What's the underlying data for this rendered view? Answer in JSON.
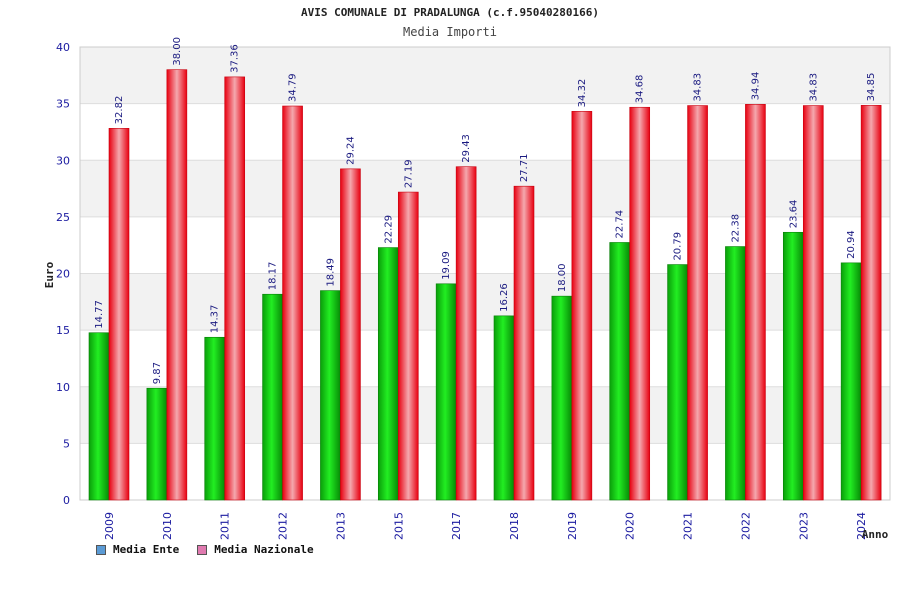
{
  "chart_data": {
    "type": "bar",
    "title": "AVIS COMUNALE DI PRADALUNGA (c.f.95040280166)",
    "subtitle": "Media Importi",
    "ylabel": "Euro",
    "xlabel": "Anno",
    "ylim": [
      0,
      40
    ],
    "yticks": [
      0,
      5,
      10,
      15,
      20,
      25,
      30,
      35,
      40
    ],
    "grid": true,
    "legend_position": "bottom-left",
    "categories": [
      "2009",
      "2010",
      "2011",
      "2012",
      "2013",
      "2015",
      "2017",
      "2018",
      "2019",
      "2020",
      "2021",
      "2022",
      "2023",
      "2024"
    ],
    "series": [
      {
        "name": "Media Ente",
        "legend_color": "#5b9bd5",
        "bar_color": "#11cc11",
        "values": [
          14.77,
          9.87,
          14.37,
          18.17,
          18.49,
          22.29,
          19.09,
          16.26,
          18.0,
          22.74,
          20.79,
          22.38,
          23.64,
          20.94
        ],
        "labels": [
          "14.77",
          "9.87",
          "14.37",
          "18.17",
          "18.49",
          "22.29",
          "19.09",
          "16.26",
          "18.00",
          "22.74",
          "20.79",
          "22.38",
          "23.64",
          "20.94"
        ]
      },
      {
        "name": "Media Nazionale",
        "legend_color": "#e07ab0",
        "bar_color": "#ee1122",
        "values": [
          32.82,
          38.0,
          37.36,
          34.79,
          29.24,
          27.19,
          29.43,
          27.71,
          34.32,
          34.68,
          34.83,
          34.94,
          34.83,
          34.85
        ],
        "labels": [
          "32.82",
          "38.00",
          "37.36",
          "34.79",
          "29.24",
          "27.19",
          "29.43",
          "27.71",
          "34.32",
          "34.68",
          "34.83",
          "34.94",
          "34.83",
          "34.85"
        ]
      }
    ]
  }
}
